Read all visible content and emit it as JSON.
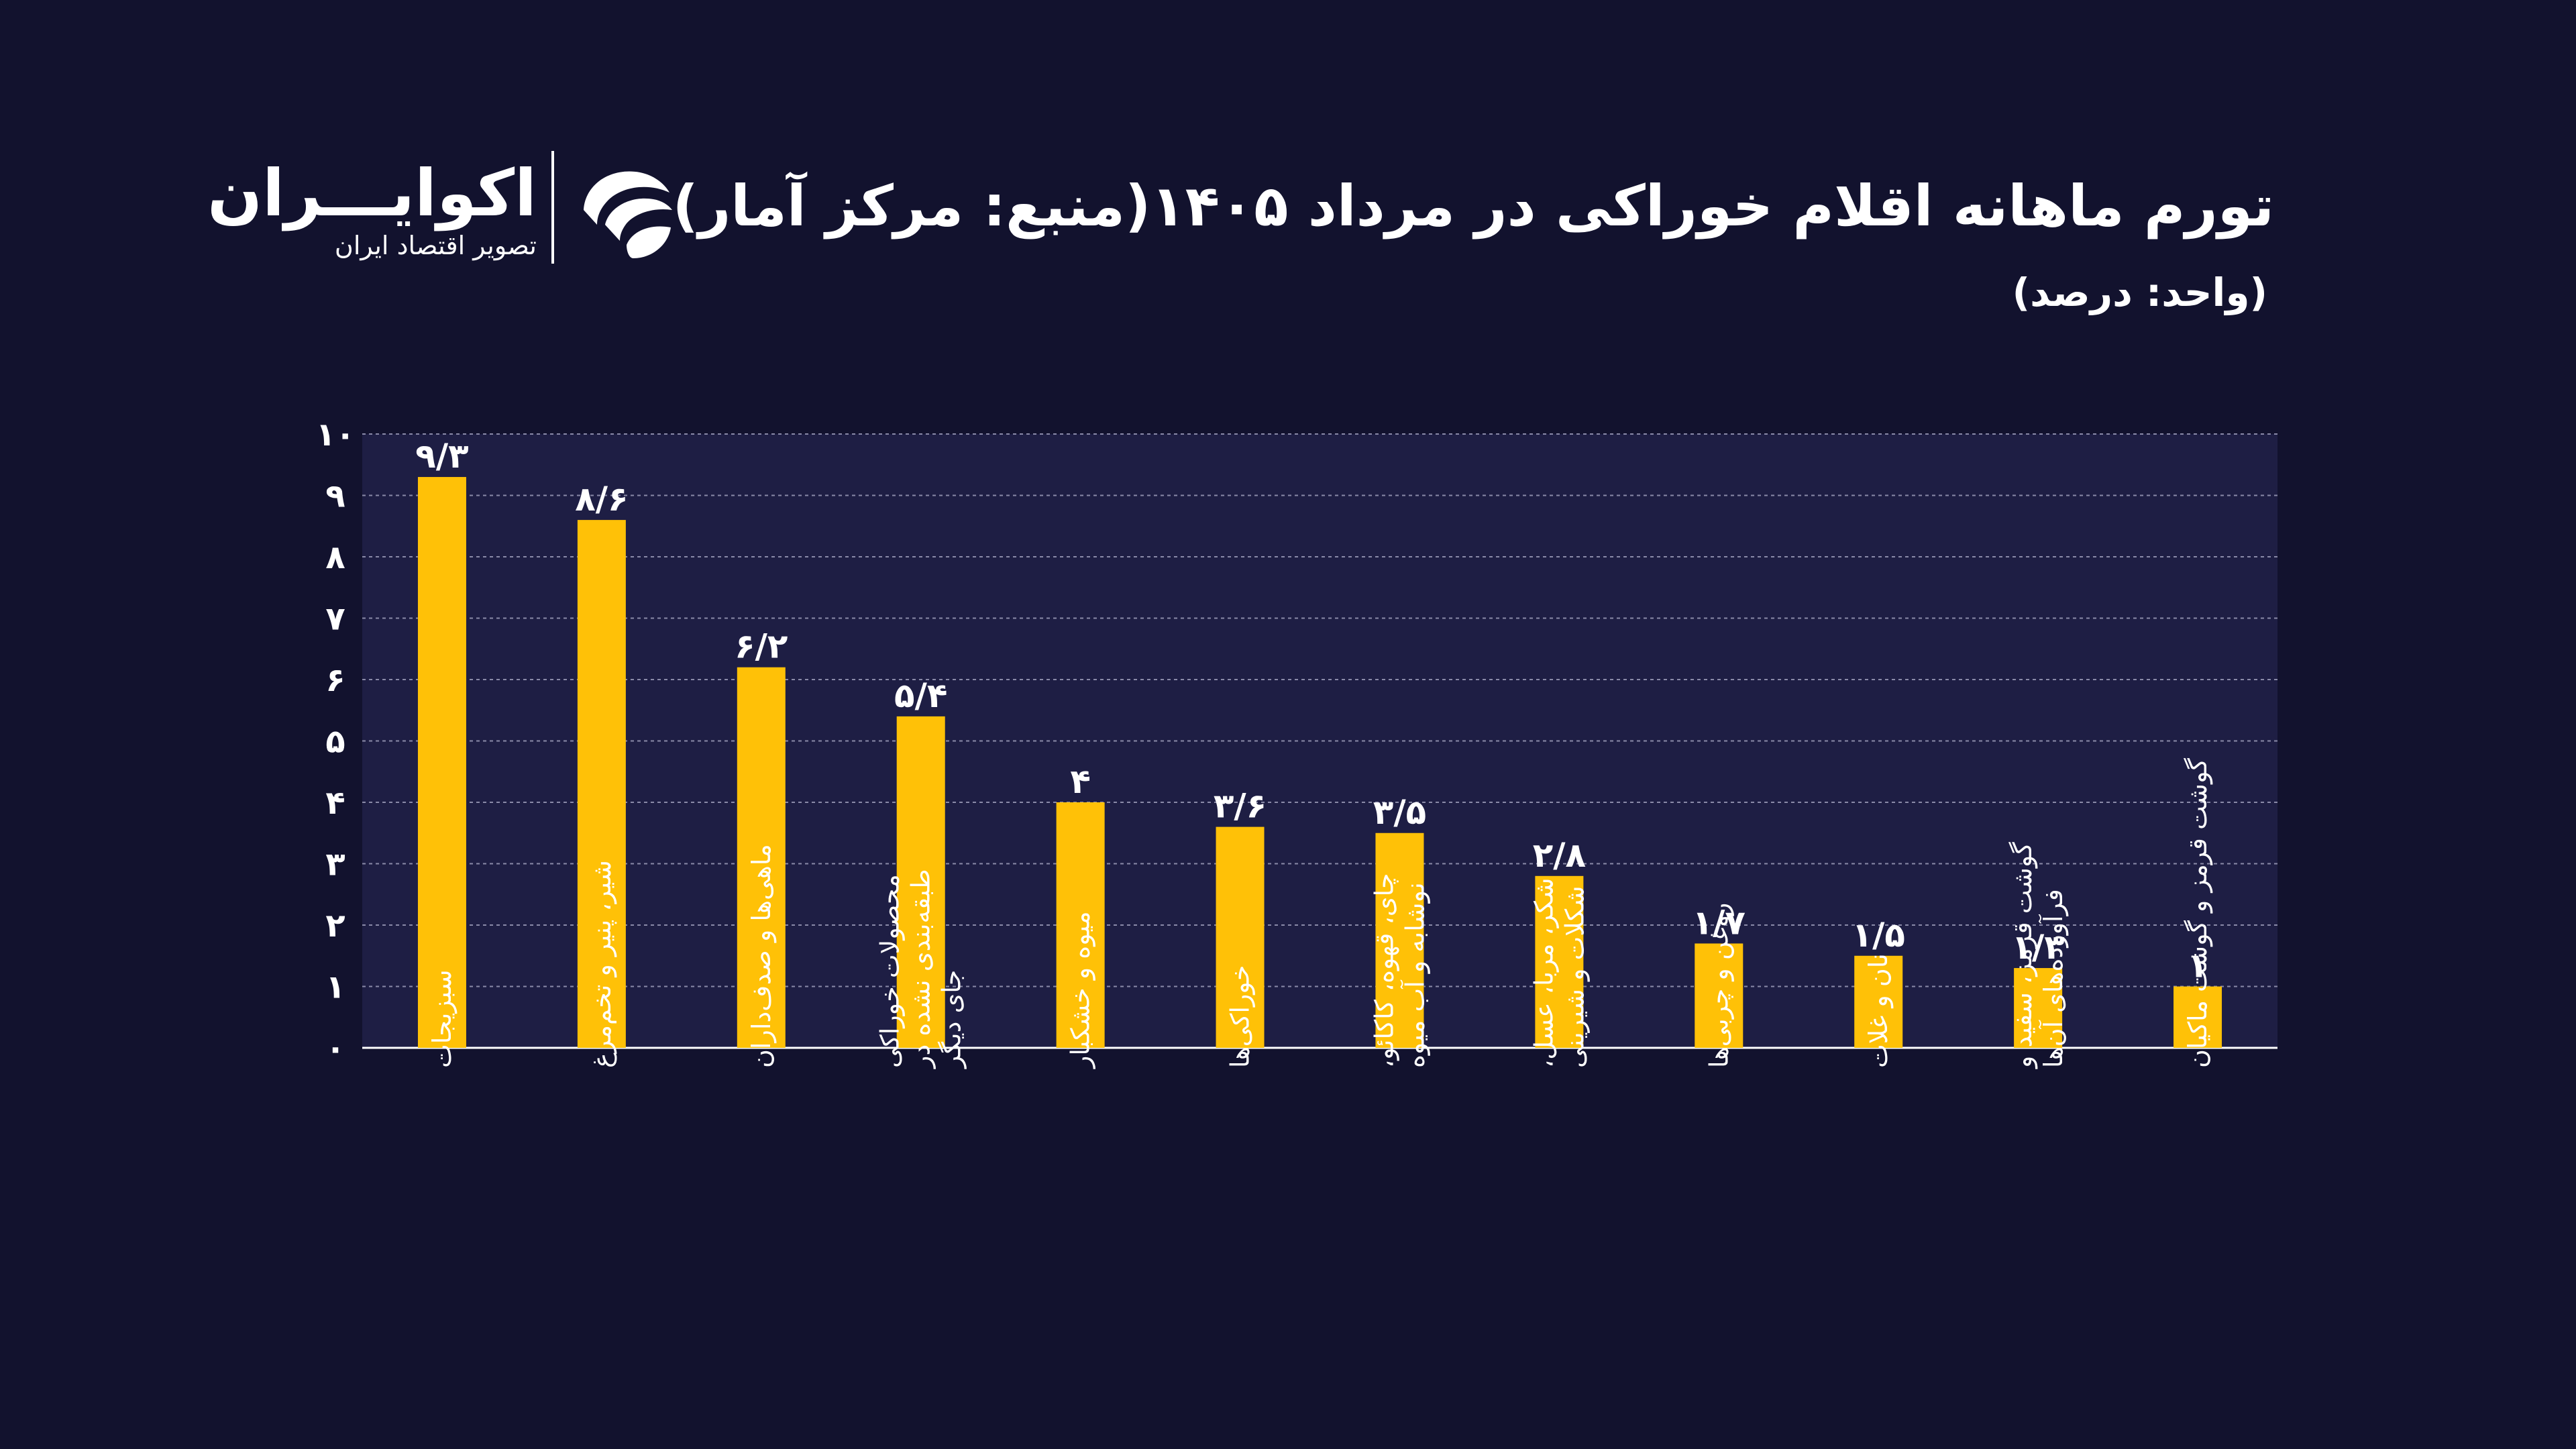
{
  "header": {
    "title": "تورم ماهانه اقلام خوراکی در مرداد ۱۴۰۵(منبع: مرکز آمار)",
    "subtitle": "(واحد: درصد)"
  },
  "logo": {
    "name": "اکوایـــران",
    "tagline": "تصویر اقتصاد ایران",
    "icon": "ecoiran-swirl-icon"
  },
  "colors": {
    "background": "#12122e",
    "plot_background": "#1e1e44",
    "bar": "#ffc107",
    "text": "#ffffff",
    "grid": "#8a8aa8"
  },
  "chart_data": {
    "type": "bar",
    "title": "تورم ماهانه اقلام خوراکی در مرداد ۱۴۰۵(منبع: مرکز آمار)",
    "subtitle": "(واحد: درصد)",
    "categories": [
      [
        "سبزیجات"
      ],
      [
        "شیر، پنیر و تخم‌مرغ"
      ],
      [
        "ماهی‌ها و صدف‌داران"
      ],
      [
        "محصولات خوراکی",
        "طبقه‌بندی نشده در",
        "جای دیگر"
      ],
      [
        "میوه و خشکبار"
      ],
      [
        "خوراکی‌ها"
      ],
      [
        "چای، قهوه، کاکائو،",
        "نوشابه و آب میوه"
      ],
      [
        "شکر، مربا، عسل،",
        "شکلات و شیرینی"
      ],
      [
        "روغن و چربی‌ها"
      ],
      [
        "نان و غلات"
      ],
      [
        "گوشت قرمز، سفید و",
        "فرآورده‌های آن‌ها"
      ],
      [
        "گوشت قرمز و گوشت ماکیان"
      ]
    ],
    "values": [
      9.3,
      8.6,
      6.2,
      5.4,
      4,
      3.6,
      3.5,
      2.8,
      1.7,
      1.5,
      1.3,
      1
    ],
    "value_labels": [
      "۹/۳",
      "۸/۶",
      "۶/۲",
      "۵/۴",
      "۴",
      "۳/۶",
      "۳/۵",
      "۲/۸",
      "۱/۷",
      "۱/۵",
      "۱/۳",
      "۱"
    ],
    "yticks": [
      0,
      1,
      2,
      3,
      4,
      5,
      6,
      7,
      8,
      9,
      10
    ],
    "ytick_labels": [
      "۰",
      "۱",
      "۲",
      "۳",
      "۴",
      "۵",
      "۶",
      "۷",
      "۸",
      "۹",
      "۱۰"
    ],
    "ylim": [
      0,
      10
    ],
    "grid": true,
    "legend": "none"
  }
}
